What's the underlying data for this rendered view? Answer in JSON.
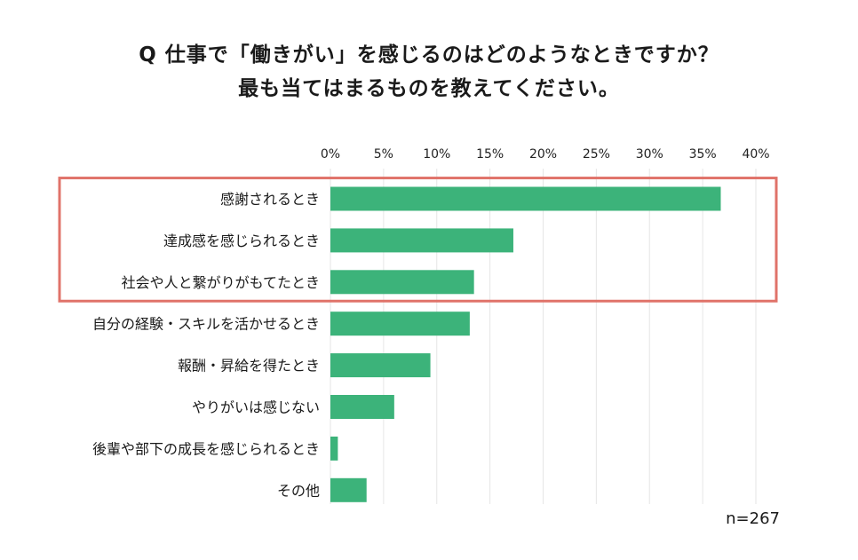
{
  "title_line1": "Q 仕事で「働きがい」を感じるのはどのようなときですか？",
  "title_line2": "最も当てはまるものを教えてください。",
  "sample_note": "n=267",
  "chart_data": {
    "type": "bar",
    "orientation": "horizontal",
    "categories": [
      "感謝されるとき",
      "達成感を感じられるとき",
      "社会や人と繋がりがもてたとき",
      "自分の経験・スキルを活かせるとき",
      "報酬・昇給を得たとき",
      "やりがいは感じない",
      "後輩や部下の成長を感じられるとき",
      "その他"
    ],
    "values": [
      36.7,
      17.2,
      13.5,
      13.1,
      9.4,
      6.0,
      0.7,
      3.4
    ],
    "xlim": [
      0,
      40
    ],
    "x_ticks": [
      "0%",
      "5%",
      "10%",
      "15%",
      "20%",
      "25%",
      "30%",
      "35%",
      "40%"
    ],
    "x_tick_values": [
      0,
      5,
      10,
      15,
      20,
      25,
      30,
      35,
      40
    ],
    "bar_color": "#3cb37a",
    "highlight_color": "#e0736a",
    "highlight_count": 3,
    "grid": true
  }
}
